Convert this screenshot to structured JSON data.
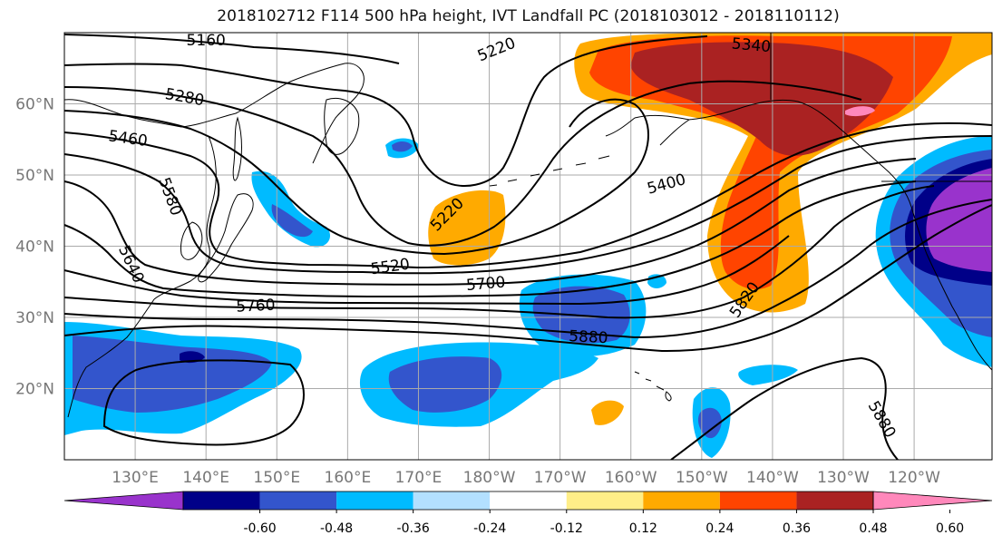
{
  "title": "2018102712 F114 500 hPa height, IVT Landfall PC (2018103012 - 2018110112)",
  "lat_labels": [
    {
      "text": "60°N",
      "lat": 60
    },
    {
      "text": "50°N",
      "lat": 50
    },
    {
      "text": "40°N",
      "lat": 40
    },
    {
      "text": "30°N",
      "lat": 30
    },
    {
      "text": "20°N",
      "lat": 20
    }
  ],
  "lon_labels": [
    {
      "text": "130°E",
      "lon": 130
    },
    {
      "text": "140°E",
      "lon": 140
    },
    {
      "text": "150°E",
      "lon": 150
    },
    {
      "text": "160°E",
      "lon": 160
    },
    {
      "text": "170°E",
      "lon": 170
    },
    {
      "text": "180°W",
      "lon": 180
    },
    {
      "text": "170°W",
      "lon": 190
    },
    {
      "text": "160°W",
      "lon": 200
    },
    {
      "text": "150°W",
      "lon": 210
    },
    {
      "text": "140°W",
      "lon": 220
    },
    {
      "text": "130°W",
      "lon": 230
    },
    {
      "text": "120°W",
      "lon": 240
    }
  ],
  "contour_labels": [
    {
      "text": "5160",
      "lon": 140,
      "lat": 69.0,
      "rot": 0
    },
    {
      "text": "5220",
      "lon": 181,
      "lat": 67.7,
      "rot": -22
    },
    {
      "text": "5340",
      "lon": 217,
      "lat": 68.3,
      "rot": 5
    },
    {
      "text": "5280",
      "lon": 137,
      "lat": 61.0,
      "rot": 10
    },
    {
      "text": "5460",
      "lon": 129,
      "lat": 55.2,
      "rot": 8
    },
    {
      "text": "5580",
      "lon": 135,
      "lat": 47.0,
      "rot": 70
    },
    {
      "text": "5400",
      "lon": 205,
      "lat": 48.8,
      "rot": -15
    },
    {
      "text": "5220",
      "lon": 174,
      "lat": 44.5,
      "rot": -45
    },
    {
      "text": "5640",
      "lon": 129.5,
      "lat": 37.5,
      "rot": 65
    },
    {
      "text": "5520",
      "lon": 166,
      "lat": 37.2,
      "rot": -8
    },
    {
      "text": "5700",
      "lon": 179.5,
      "lat": 34.8,
      "rot": -5
    },
    {
      "text": "5820",
      "lon": 216,
      "lat": 32.5,
      "rot": -55
    },
    {
      "text": "5760",
      "lon": 147,
      "lat": 31.7,
      "rot": -3
    },
    {
      "text": "5880",
      "lon": 194,
      "lat": 27.3,
      "rot": 3
    },
    {
      "text": "5880",
      "lon": 235.5,
      "lat": 15.7,
      "rot": 60
    }
  ],
  "colorbar": {
    "colors": [
      "#9933cc",
      "#000088",
      "#3355cc",
      "#00bbff",
      "#b3e0ff",
      "#ffffff",
      "#ffee88",
      "#ffaa00",
      "#ff4400",
      "#aa2222",
      "#ff88bb"
    ],
    "ticks": [
      "-0.60",
      "-0.48",
      "-0.36",
      "-0.24",
      "-0.12",
      "0.12",
      "0.24",
      "0.36",
      "0.48",
      "0.60"
    ]
  }
}
